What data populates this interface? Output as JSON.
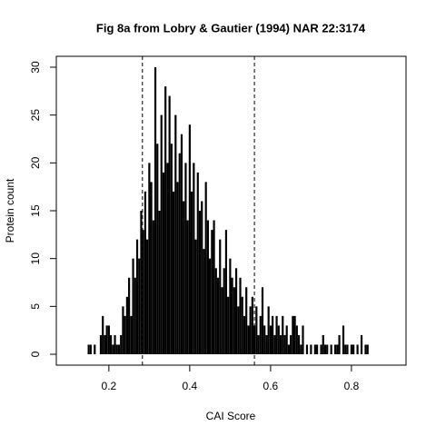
{
  "chart_data": {
    "type": "spike",
    "title": "Fig 8a from Lobry & Gautier (1994) NAR 22:3174",
    "xlabel": "CAI Score",
    "ylabel": "Protein count",
    "color": "#000000",
    "x": [
      0.15,
      0.155,
      0.16,
      0.165,
      0.17,
      0.175,
      0.18,
      0.185,
      0.19,
      0.195,
      0.2,
      0.205,
      0.21,
      0.215,
      0.22,
      0.225,
      0.23,
      0.235,
      0.24,
      0.245,
      0.25,
      0.255,
      0.26,
      0.265,
      0.27,
      0.275,
      0.28,
      0.285,
      0.29,
      0.295,
      0.3,
      0.305,
      0.31,
      0.315,
      0.32,
      0.325,
      0.33,
      0.335,
      0.34,
      0.345,
      0.35,
      0.355,
      0.36,
      0.365,
      0.37,
      0.375,
      0.38,
      0.385,
      0.39,
      0.395,
      0.4,
      0.405,
      0.41,
      0.415,
      0.42,
      0.425,
      0.43,
      0.435,
      0.44,
      0.445,
      0.45,
      0.455,
      0.46,
      0.465,
      0.47,
      0.475,
      0.48,
      0.485,
      0.49,
      0.495,
      0.5,
      0.505,
      0.51,
      0.515,
      0.52,
      0.525,
      0.53,
      0.535,
      0.54,
      0.545,
      0.55,
      0.555,
      0.56,
      0.565,
      0.57,
      0.575,
      0.58,
      0.585,
      0.59,
      0.595,
      0.6,
      0.605,
      0.61,
      0.615,
      0.62,
      0.625,
      0.63,
      0.635,
      0.64,
      0.645,
      0.65,
      0.655,
      0.66,
      0.665,
      0.67,
      0.675,
      0.68,
      0.685,
      0.69,
      0.695,
      0.7,
      0.705,
      0.71,
      0.715,
      0.72,
      0.725,
      0.73,
      0.735,
      0.74,
      0.745,
      0.75,
      0.755,
      0.76,
      0.765,
      0.77,
      0.775,
      0.78,
      0.785,
      0.79,
      0.795,
      0.8,
      0.805,
      0.81,
      0.815,
      0.82,
      0.825,
      0.83,
      0.835,
      0.84
    ],
    "values": [
      1,
      1,
      0,
      1,
      0,
      0,
      2,
      4,
      2,
      3,
      3,
      2,
      1,
      2,
      1,
      1,
      2,
      5,
      4,
      6,
      8,
      4,
      10,
      8,
      12,
      10,
      15,
      13,
      17,
      12,
      20,
      18,
      14,
      30,
      22,
      15,
      25,
      19,
      28,
      20,
      27,
      22,
      17,
      25,
      18,
      21,
      23,
      16,
      20,
      14,
      24,
      17,
      20,
      12,
      19,
      15,
      16,
      11,
      18,
      14,
      10,
      13,
      14,
      9,
      8,
      12,
      7,
      9,
      13,
      6,
      10,
      8,
      7,
      9,
      5,
      8,
      6,
      4,
      7,
      3,
      5,
      6,
      3,
      5,
      2,
      4,
      7,
      3,
      2,
      5,
      3,
      4,
      2,
      4,
      3,
      2,
      4,
      2,
      3,
      1,
      2,
      4,
      4,
      3,
      2,
      1,
      3,
      0,
      1,
      0,
      1,
      0,
      1,
      1,
      0,
      1,
      2,
      1,
      1,
      0,
      1,
      0,
      1,
      1,
      2,
      0,
      3,
      1,
      1,
      0,
      1,
      1,
      0,
      1,
      0,
      2,
      0,
      1,
      1
    ],
    "vlines": [
      0.283,
      0.56
    ],
    "xlim": [
      0.07,
      0.935
    ],
    "xticks": [
      0.2,
      0.4,
      0.6,
      0.8
    ],
    "ylim": [
      -1.14,
      31.14
    ],
    "yticks": [
      0,
      5,
      10,
      15,
      20,
      25,
      30
    ]
  }
}
